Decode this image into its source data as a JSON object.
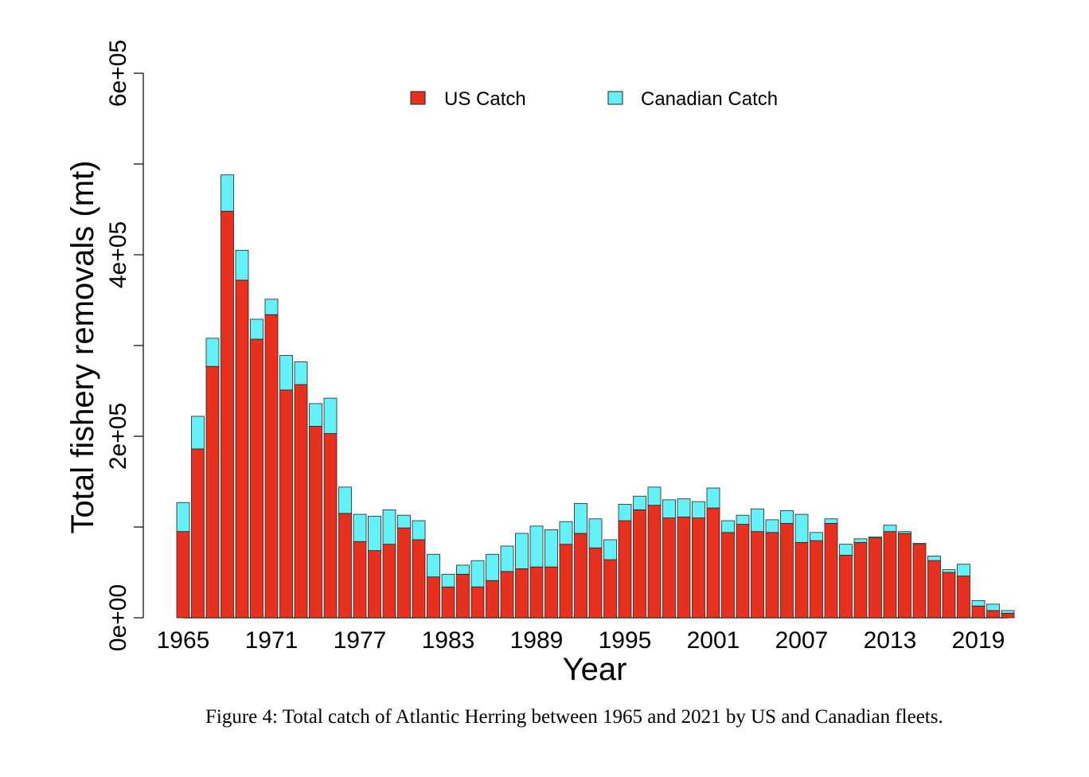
{
  "chart_data": {
    "type": "bar",
    "stacked": true,
    "xlabel": "Year",
    "ylabel": "Total fishery removals (mt)",
    "ylim": [
      0,
      600000
    ],
    "yticks": [
      0,
      100000,
      200000,
      300000,
      400000,
      500000,
      600000
    ],
    "ytick_labels": [
      "0e+00",
      "",
      "2e+05",
      "",
      "4e+05",
      "",
      "6e+05"
    ],
    "xtick_labels": [
      "1965",
      "1971",
      "1977",
      "1983",
      "1989",
      "1995",
      "2001",
      "2007",
      "2013",
      "2019"
    ],
    "grid": false,
    "legend_position": "top-center",
    "categories": [
      1965,
      1966,
      1967,
      1968,
      1969,
      1970,
      1971,
      1972,
      1973,
      1974,
      1975,
      1976,
      1977,
      1978,
      1979,
      1980,
      1981,
      1982,
      1983,
      1984,
      1985,
      1986,
      1987,
      1988,
      1989,
      1990,
      1991,
      1992,
      1993,
      1994,
      1995,
      1996,
      1997,
      1998,
      1999,
      2000,
      2001,
      2002,
      2003,
      2004,
      2005,
      2006,
      2007,
      2008,
      2009,
      2010,
      2011,
      2012,
      2013,
      2014,
      2015,
      2016,
      2017,
      2018,
      2019,
      2020,
      2021
    ],
    "series": [
      {
        "name": "US Catch",
        "color": "#e8301f",
        "values": [
          95000,
          186000,
          277000,
          448000,
          372000,
          307000,
          334000,
          251000,
          257000,
          211000,
          203000,
          115000,
          84000,
          74000,
          81000,
          99000,
          86000,
          45000,
          34000,
          48000,
          34000,
          41000,
          51000,
          54000,
          56000,
          56000,
          81000,
          93000,
          77000,
          64000,
          107000,
          119000,
          124000,
          110000,
          111000,
          110000,
          121000,
          94000,
          103000,
          95000,
          94000,
          104000,
          83000,
          85000,
          104000,
          69000,
          83000,
          88000,
          95000,
          93000,
          81000,
          63000,
          50000,
          46000,
          13000,
          8000,
          5000
        ]
      },
      {
        "name": "Canadian Catch",
        "color": "#63f0f6",
        "values": [
          32000,
          36000,
          31000,
          40000,
          33000,
          22000,
          17000,
          38000,
          25000,
          25000,
          39000,
          29000,
          30000,
          38000,
          38000,
          14000,
          21000,
          25000,
          14000,
          10000,
          29000,
          29000,
          28000,
          39000,
          45000,
          41000,
          25000,
          33000,
          32000,
          22000,
          18000,
          15000,
          20000,
          20000,
          20000,
          18000,
          22000,
          13000,
          10000,
          25000,
          14000,
          14000,
          31000,
          9000,
          5000,
          12000,
          4000,
          1000,
          7000,
          2000,
          1000,
          5000,
          3000,
          13000,
          6000,
          7000,
          3000
        ]
      }
    ]
  },
  "caption": {
    "text": "Figure 4:  Total catch of Atlantic Herring between 1965 and 2021 by US and Canadian fleets."
  }
}
